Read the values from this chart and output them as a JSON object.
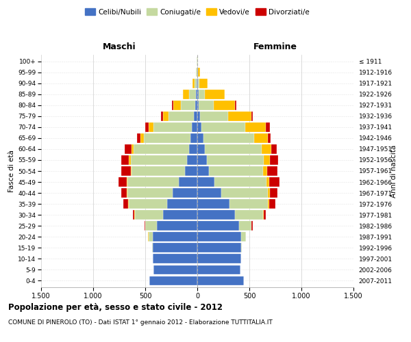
{
  "age_groups": [
    "0-4",
    "5-9",
    "10-14",
    "15-19",
    "20-24",
    "25-29",
    "30-34",
    "35-39",
    "40-44",
    "45-49",
    "50-54",
    "55-59",
    "60-64",
    "65-69",
    "70-74",
    "75-79",
    "80-84",
    "85-89",
    "90-94",
    "95-99",
    "100+"
  ],
  "birth_years": [
    "2007-2011",
    "2002-2006",
    "1997-2001",
    "1992-1996",
    "1987-1991",
    "1982-1986",
    "1977-1981",
    "1972-1976",
    "1967-1971",
    "1962-1966",
    "1957-1961",
    "1952-1956",
    "1947-1951",
    "1942-1946",
    "1937-1941",
    "1932-1936",
    "1927-1931",
    "1922-1926",
    "1917-1921",
    "1912-1916",
    "≤ 1911"
  ],
  "maschi_celibe": [
    460,
    420,
    430,
    430,
    430,
    390,
    330,
    290,
    240,
    180,
    120,
    100,
    80,
    65,
    50,
    35,
    18,
    10,
    5,
    3,
    2
  ],
  "maschi_coniugato": [
    0,
    0,
    0,
    2,
    40,
    110,
    270,
    370,
    430,
    490,
    510,
    540,
    530,
    450,
    370,
    240,
    140,
    70,
    22,
    8,
    2
  ],
  "maschi_vedovo": [
    0,
    0,
    0,
    0,
    1,
    2,
    2,
    3,
    5,
    8,
    10,
    15,
    20,
    30,
    50,
    55,
    75,
    55,
    18,
    4,
    1
  ],
  "maschi_divorziato": [
    0,
    0,
    0,
    0,
    2,
    5,
    18,
    48,
    58,
    78,
    88,
    78,
    68,
    33,
    33,
    18,
    8,
    4,
    1,
    0,
    0
  ],
  "femmine_celibe": [
    445,
    415,
    420,
    420,
    420,
    400,
    360,
    310,
    230,
    165,
    110,
    90,
    75,
    58,
    42,
    28,
    15,
    10,
    8,
    5,
    3
  ],
  "femmine_coniugato": [
    0,
    0,
    0,
    5,
    45,
    120,
    270,
    370,
    450,
    500,
    520,
    550,
    545,
    490,
    420,
    265,
    145,
    65,
    15,
    4,
    1
  ],
  "femmine_vedovo": [
    0,
    0,
    0,
    0,
    1,
    3,
    5,
    10,
    15,
    28,
    40,
    58,
    88,
    128,
    195,
    225,
    205,
    185,
    75,
    18,
    2
  ],
  "femmine_divorziato": [
    0,
    0,
    0,
    0,
    3,
    10,
    23,
    58,
    78,
    98,
    98,
    78,
    58,
    28,
    38,
    13,
    8,
    4,
    2,
    0,
    0
  ],
  "colors": {
    "celibe": "#4472c4",
    "coniugato": "#c5d9a0",
    "vedovo": "#ffc000",
    "divorziato": "#cc0000"
  },
  "title1": "Popolazione per età, sesso e stato civile - 2012",
  "title2": "COMUNE DI PINEROLO (TO) - Dati ISTAT 1° gennaio 2012 - Elaborazione TUTTITALIA.IT",
  "xlabel_left": "Maschi",
  "xlabel_right": "Femmine",
  "ylabel_left": "Fasce di età",
  "ylabel_right": "Anni di nascita",
  "xlim": 1500,
  "background_color": "#ffffff",
  "grid_color": "#cccccc"
}
